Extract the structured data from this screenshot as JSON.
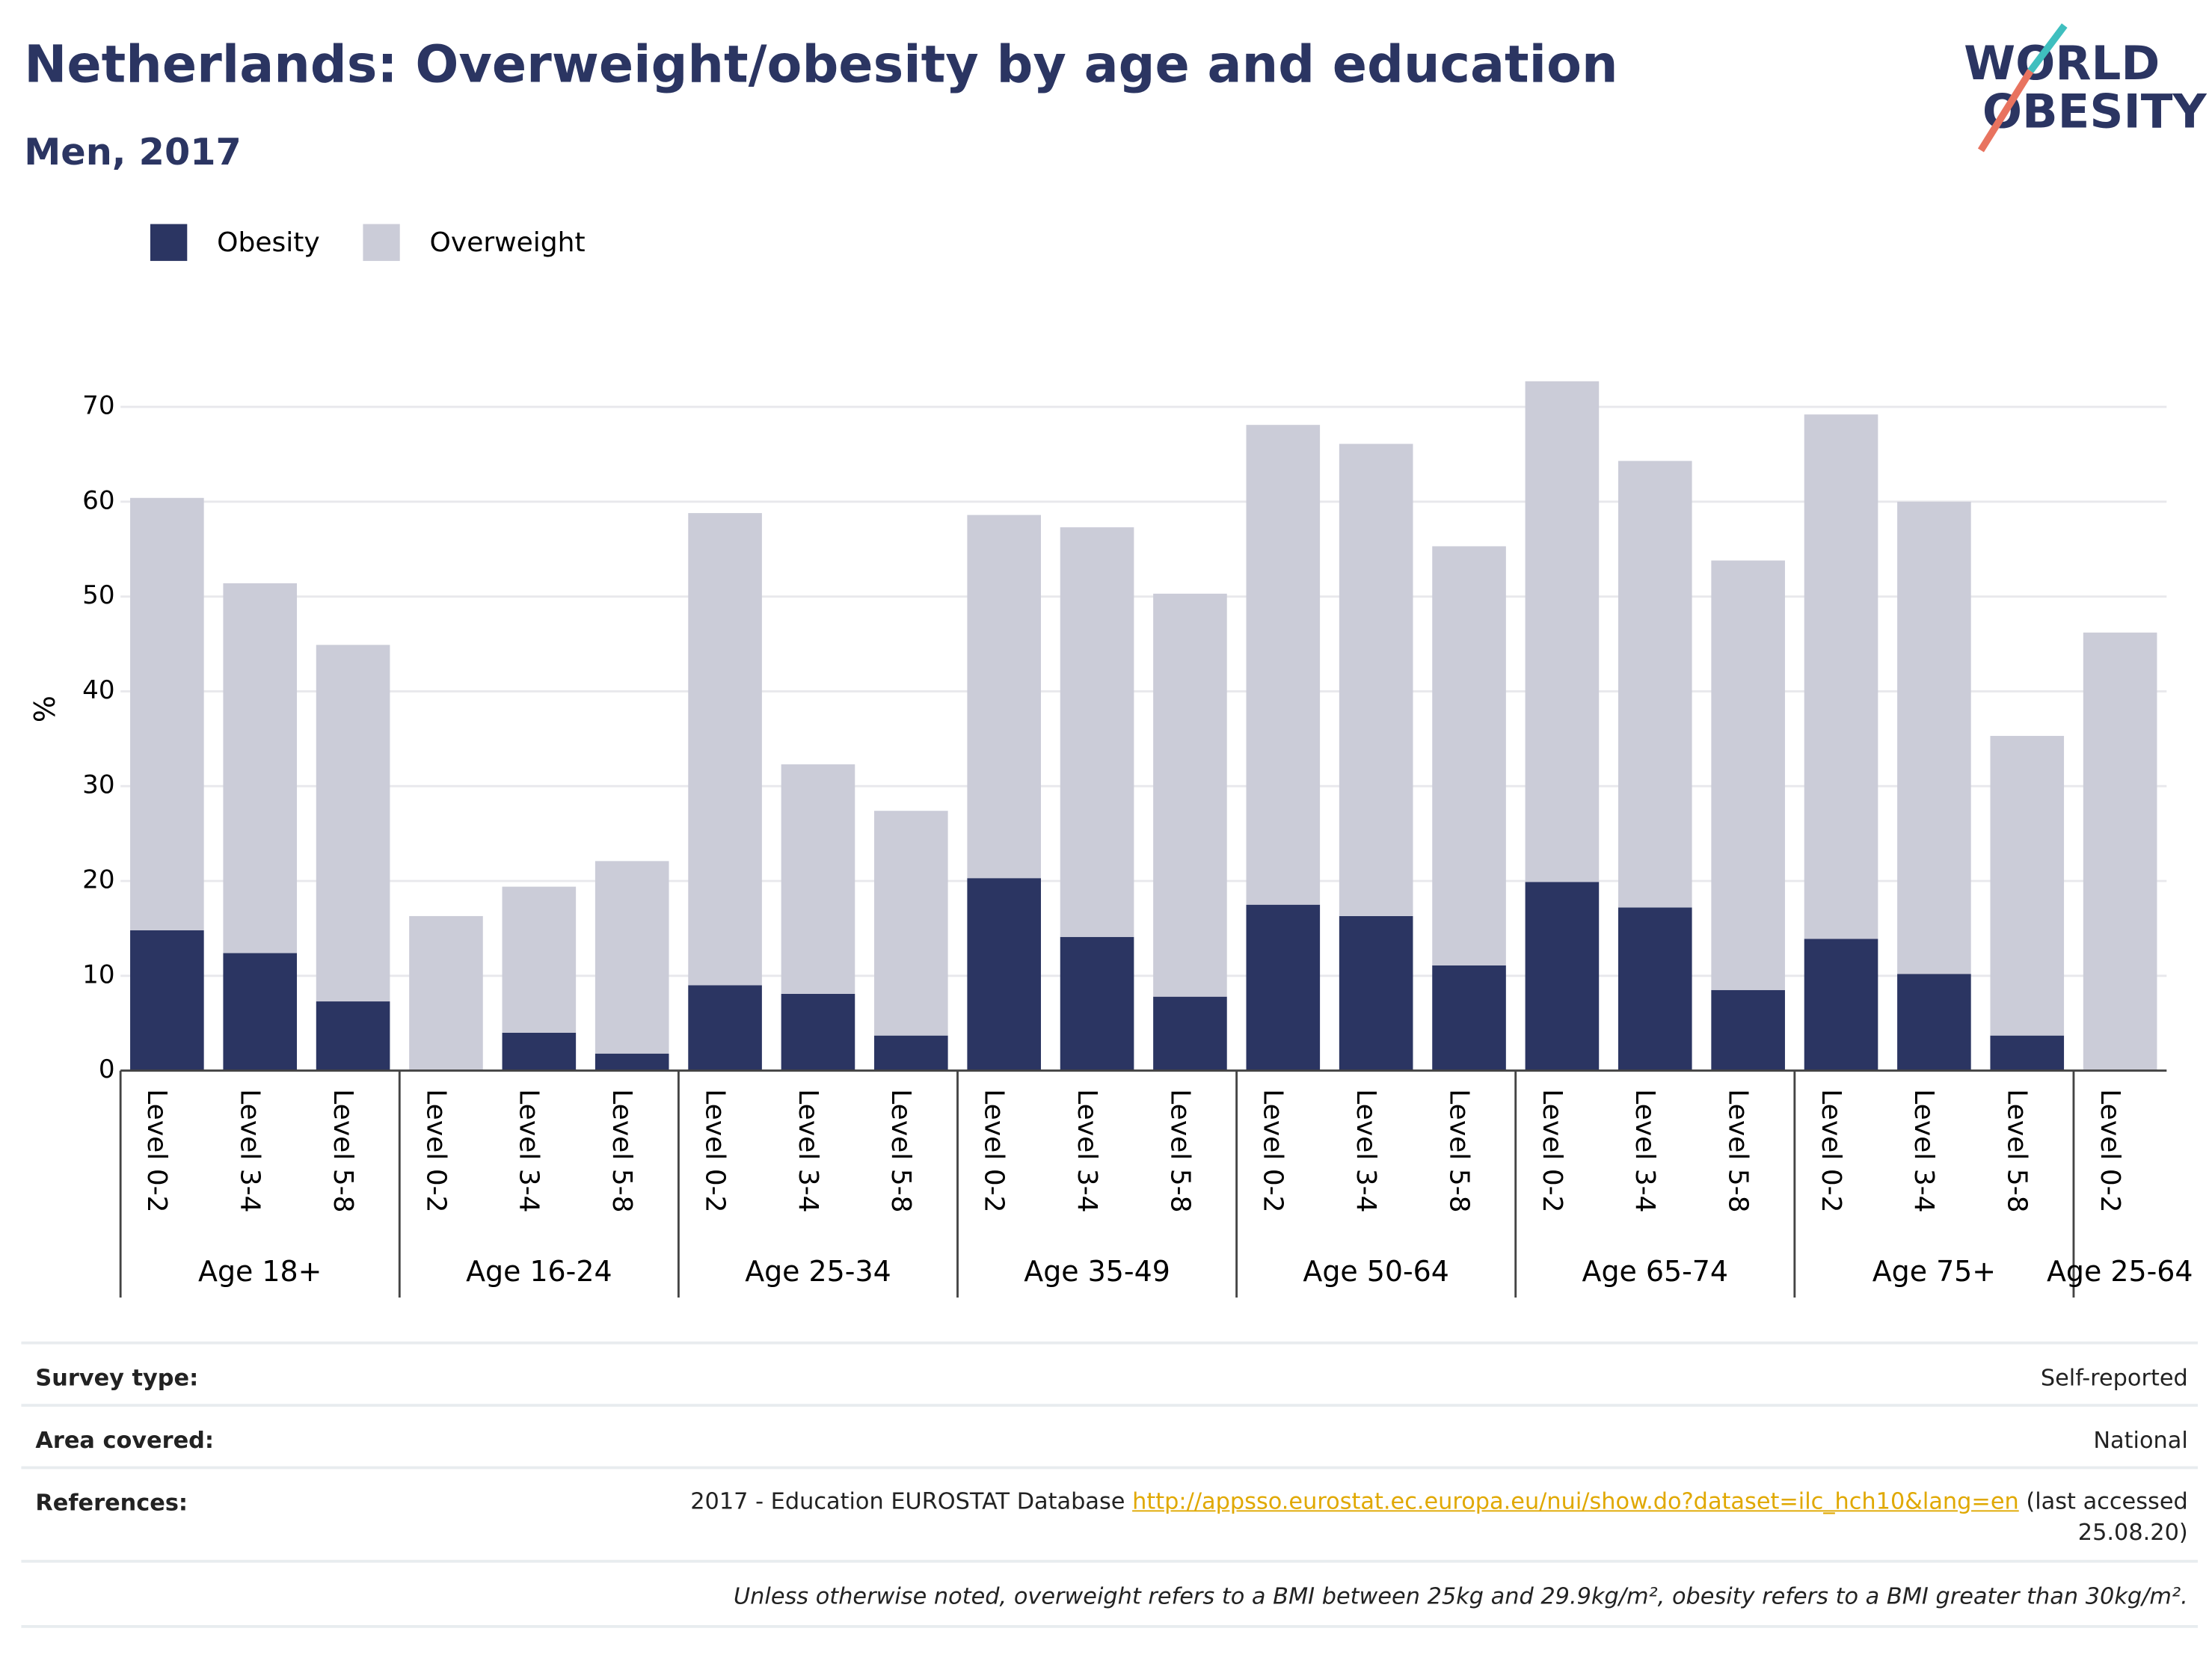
{
  "chart_data": {
    "type": "stacked_bar",
    "title": "Netherlands: Overweight/obesity by age and education",
    "subtitle": "Men, 2017",
    "y_label": "%",
    "categories": [
      "Level 0-2",
      "Level 3-4",
      "Level 5-8",
      "Level 0-2",
      "Level 3-4",
      "Level 5-8",
      "Level 0-2",
      "Level 3-4",
      "Level 5-8",
      "Level 0-2",
      "Level 3-4",
      "Level 5-8",
      "Level 0-2",
      "Level 3-4",
      "Level 5-8",
      "Level 0-2",
      "Level 3-4",
      "Level 5-8",
      "Level 0-2",
      "Level 3-4",
      "Level 5-8",
      "Level 0-2"
    ],
    "category_groups": [
      "Age 18+",
      "Age 18+",
      "Age 18+",
      "Age 16-24",
      "Age 16-24",
      "Age 16-24",
      "Age 25-34",
      "Age 25-34",
      "Age 25-34",
      "Age 35-49",
      "Age 35-49",
      "Age 35-49",
      "Age 50-64",
      "Age 50-64",
      "Age 50-64",
      "Age 65-74",
      "Age 65-74",
      "Age 65-74",
      "Age 75+",
      "Age 75+",
      "Age 75+",
      "Age 25-64"
    ],
    "series": [
      {
        "name": "Obesity",
        "color": "#2b3562",
        "values": [
          14.8,
          12.4,
          7.3,
          0,
          4.0,
          1.8,
          9.0,
          8.1,
          3.7,
          20.3,
          14.1,
          7.8,
          17.5,
          16.3,
          11.1,
          19.9,
          17.2,
          8.5,
          13.9,
          10.2,
          3.7,
          0
        ]
      },
      {
        "name": "Overweight",
        "color": "#cbccd8",
        "values": [
          45.6,
          39.0,
          37.6,
          16.3,
          15.4,
          20.3,
          49.8,
          24.2,
          23.7,
          38.3,
          43.2,
          42.5,
          50.6,
          49.8,
          44.2,
          52.8,
          47.1,
          45.3,
          55.3,
          49.8,
          31.6,
          46.2
        ]
      }
    ],
    "ylim": [
      0,
      75
    ],
    "yticks": [
      0,
      10,
      20,
      30,
      40,
      50,
      60,
      70
    ],
    "grid": true,
    "legend": "top-left"
  },
  "logo": {
    "line1": "WORLD",
    "line2": "OBESITY"
  },
  "footer": {
    "rows": [
      {
        "label": "Survey type:",
        "value": "Self-reported"
      },
      {
        "label": "Area covered:",
        "value": "National"
      }
    ],
    "references": {
      "label": "References:",
      "text": "2017 - Education EUROSTAT Database",
      "link": "http://appsso.eurostat.ec.europa.eu/nui/show.do?dataset=ilc_hch10&lang=en",
      "suffix": "(last accessed 25.08.20)"
    },
    "note": "Unless otherwise noted, overweight refers to a BMI between 25kg and 29.9kg/m², obesity refers to a BMI greater than 30kg/m²."
  }
}
